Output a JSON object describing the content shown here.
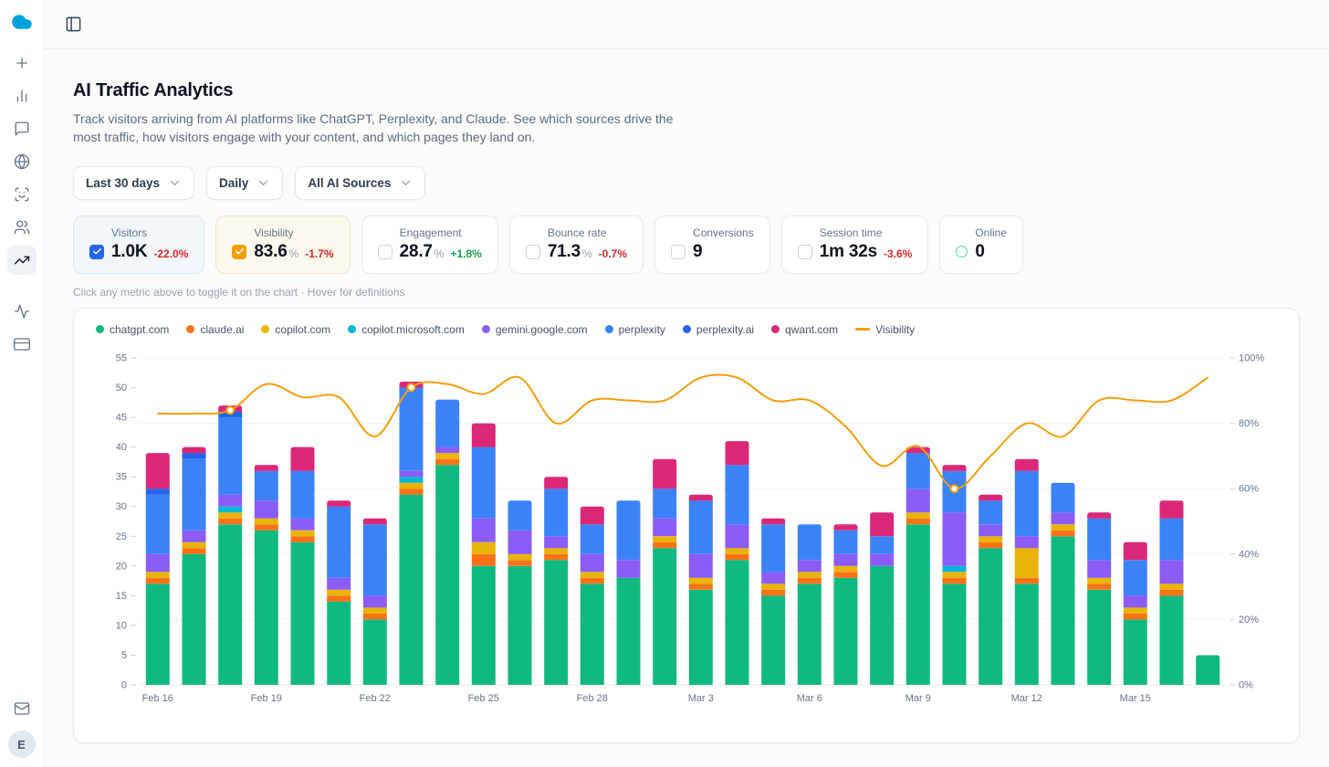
{
  "page": {
    "title": "AI Traffic Analytics",
    "description": "Track visitors arriving from AI platforms like ChatGPT, Perplexity, and Claude. See which sources drive the most traffic, how visitors engage with your content, and which pages they land on.",
    "hint": "Click any metric above to toggle it on the chart · Hover for definitions"
  },
  "sidebar": {
    "logo_color": "#00a1e0",
    "avatar_initial": "E",
    "items": [
      {
        "icon": "plus",
        "name": "new"
      },
      {
        "icon": "bar-chart",
        "name": "analytics"
      },
      {
        "icon": "message-square",
        "name": "messages"
      },
      {
        "icon": "globe",
        "name": "web"
      },
      {
        "icon": "scan-face",
        "name": "identity"
      },
      {
        "icon": "users",
        "name": "audience"
      },
      {
        "icon": "trending-up",
        "name": "ai-traffic",
        "active": true
      },
      {
        "icon": "activity",
        "name": "activity",
        "gap_above": true
      },
      {
        "icon": "credit-card",
        "name": "billing"
      }
    ],
    "bottom_items": [
      {
        "icon": "mail",
        "name": "inbox"
      }
    ]
  },
  "filters": {
    "items": [
      {
        "id": "date-range",
        "label": "Last 30 days"
      },
      {
        "id": "granularity",
        "label": "Daily"
      },
      {
        "id": "sources",
        "label": "All AI Sources"
      }
    ]
  },
  "metrics": {
    "items": [
      {
        "id": "visitors",
        "label": "Visitors",
        "value": "1.0K",
        "unit": "",
        "delta": "-22.0%",
        "delta_dir": "down",
        "state": "checked",
        "accent": "#2563eb",
        "bg": "#f0f6fa",
        "border": "#d9e7f0"
      },
      {
        "id": "visibility",
        "label": "Visibility",
        "value": "83.6",
        "unit": "%",
        "delta": "-1.7%",
        "delta_dir": "down",
        "state": "checked",
        "accent": "#f59e0b",
        "bg": "#fcf8ed",
        "border": "#f0e4c5"
      },
      {
        "id": "engagement",
        "label": "Engagement",
        "value": "28.7",
        "unit": "%",
        "delta": "+1.8%",
        "delta_dir": "up",
        "state": "unchecked"
      },
      {
        "id": "bounce-rate",
        "label": "Bounce rate",
        "value": "71.3",
        "unit": "%",
        "delta": "-0.7%",
        "delta_dir": "down",
        "state": "unchecked"
      },
      {
        "id": "conversions",
        "label": "Conversions",
        "value": "9",
        "unit": "",
        "delta": "",
        "delta_dir": "",
        "state": "unchecked"
      },
      {
        "id": "session-time",
        "label": "Session time",
        "value": "1m 32s",
        "unit": "",
        "delta": "-3.6%",
        "delta_dir": "down",
        "state": "unchecked"
      },
      {
        "id": "online",
        "label": "Online",
        "value": "0",
        "unit": "",
        "delta": "",
        "delta_dir": "",
        "state": "online",
        "accent": "#4ade80"
      }
    ]
  },
  "chart_data": {
    "type": "bar",
    "stacked": true,
    "grid": "horizontal",
    "legend_position": "top-left",
    "x": [
      "Feb 16",
      "Feb 17",
      "Feb 18",
      "Feb 19",
      "Feb 20",
      "Feb 21",
      "Feb 22",
      "Feb 23",
      "Feb 24",
      "Feb 25",
      "Feb 26",
      "Feb 27",
      "Feb 28",
      "Mar 1",
      "Mar 2",
      "Mar 3",
      "Mar 4",
      "Mar 5",
      "Mar 6",
      "Mar 7",
      "Mar 8",
      "Mar 9",
      "Mar 10",
      "Mar 11",
      "Mar 12",
      "Mar 13",
      "Mar 14",
      "Mar 15",
      "Mar 16",
      "Mar 17"
    ],
    "x_tick_every": 3,
    "left_axis": {
      "min": 0,
      "max": 55,
      "step": 5
    },
    "right_axis": {
      "min": 0,
      "max": 100,
      "step": 20,
      "suffix": "%"
    },
    "series": [
      {
        "name": "chatgpt.com",
        "color": "#10b981",
        "values": [
          17,
          22,
          27,
          26,
          24,
          14,
          11,
          32,
          37,
          20,
          20,
          21,
          17,
          18,
          23,
          16,
          21,
          15,
          17,
          18,
          20,
          27,
          17,
          23,
          17,
          25,
          16,
          11,
          15,
          5
        ]
      },
      {
        "name": "claude.ai",
        "color": "#f97316",
        "values": [
          1,
          1,
          1,
          1,
          1,
          1,
          1,
          1,
          1,
          2,
          1,
          1,
          1,
          0,
          1,
          1,
          1,
          1,
          1,
          1,
          0,
          1,
          1,
          1,
          1,
          1,
          1,
          1,
          1,
          0
        ]
      },
      {
        "name": "copilot.com",
        "color": "#eab308",
        "values": [
          1,
          1,
          1,
          1,
          1,
          1,
          1,
          1,
          1,
          2,
          1,
          1,
          1,
          0,
          1,
          1,
          1,
          1,
          1,
          1,
          0,
          1,
          1,
          1,
          5,
          1,
          1,
          1,
          1,
          0
        ]
      },
      {
        "name": "copilot.microsoft.com",
        "color": "#06b6d4",
        "values": [
          0,
          0,
          1,
          0,
          0,
          0,
          0,
          1,
          0,
          0,
          0,
          0,
          0,
          0,
          0,
          0,
          0,
          0,
          0,
          0,
          0,
          0,
          1,
          0,
          0,
          0,
          0,
          0,
          0,
          0
        ]
      },
      {
        "name": "gemini.google.com",
        "color": "#8b5cf6",
        "values": [
          3,
          2,
          2,
          3,
          2,
          2,
          2,
          1,
          1,
          4,
          4,
          2,
          3,
          3,
          3,
          4,
          4,
          2,
          2,
          2,
          2,
          4,
          9,
          2,
          2,
          2,
          3,
          2,
          4,
          0
        ]
      },
      {
        "name": "perplexity",
        "color": "#3b82f6",
        "values": [
          10,
          12,
          13,
          5,
          8,
          12,
          12,
          14,
          8,
          12,
          5,
          8,
          5,
          10,
          5,
          9,
          10,
          8,
          6,
          4,
          3,
          6,
          7,
          4,
          11,
          5,
          7,
          6,
          7,
          0
        ]
      },
      {
        "name": "perplexity.ai",
        "color": "#2563eb",
        "values": [
          1,
          1,
          1,
          0,
          0,
          0,
          0,
          0,
          0,
          0,
          0,
          0,
          0,
          0,
          0,
          0,
          0,
          0,
          0,
          0,
          0,
          0,
          0,
          0,
          0,
          0,
          0,
          0,
          0,
          0
        ]
      },
      {
        "name": "qwant.com",
        "color": "#db2777",
        "values": [
          6,
          1,
          1,
          1,
          4,
          1,
          1,
          1,
          0,
          4,
          0,
          2,
          3,
          0,
          5,
          1,
          4,
          1,
          0,
          1,
          4,
          1,
          1,
          1,
          2,
          0,
          1,
          3,
          3,
          0
        ]
      }
    ],
    "line": {
      "name": "Visibility",
      "color": "#f59e0b",
      "axis": "right",
      "marker_indices": [
        2,
        7,
        22
      ],
      "values": [
        83,
        83,
        84,
        92,
        88,
        88,
        76,
        91,
        92,
        89,
        94,
        80,
        87,
        87,
        87,
        94,
        94,
        87,
        87,
        79,
        67,
        73,
        60,
        70,
        80,
        76,
        87,
        87,
        87,
        94
      ]
    }
  }
}
